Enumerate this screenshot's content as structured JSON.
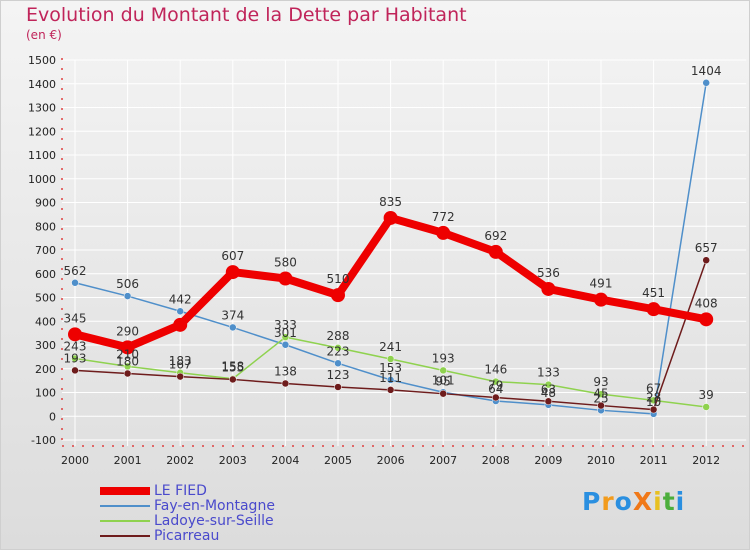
{
  "header": {
    "title": "Evolution du Montant de la Dette par Habitant",
    "subtitle": "(en €)"
  },
  "logo_text": "ProXiti",
  "logo_colors": [
    "#2a8fe0",
    "#f29b1c",
    "#2a8fe0",
    "#f07818",
    "#e8c020",
    "#4cae3c",
    "#2a8fe0"
  ],
  "chart_data": {
    "type": "line",
    "title": "Evolution du Montant de la Dette par Habitant",
    "subtitle": "(en €)",
    "xlabel": "",
    "ylabel": "",
    "categories": [
      "2000",
      "2001",
      "2002",
      "2003",
      "2004",
      "2005",
      "2006",
      "2007",
      "2008",
      "2009",
      "2010",
      "2011",
      "2012"
    ],
    "yticks": [
      "-100",
      "0",
      "100",
      "200",
      "300",
      "400",
      "500",
      "600",
      "700",
      "800",
      "900",
      "1000",
      "1100",
      "1200",
      "1300",
      "1400",
      "1500"
    ],
    "ylim": [
      -100,
      1500
    ],
    "grid": true,
    "legend_position": "bottom-left",
    "series": [
      {
        "name": "LE FIED",
        "color": "#ee0000",
        "bold": true,
        "values": [
          345,
          290,
          385,
          607,
          580,
          510,
          835,
          772,
          692,
          536,
          491,
          451,
          408
        ],
        "labels": [
          "345",
          "290",
          "",
          "607",
          "580",
          "510",
          "835",
          "772",
          "692",
          "536",
          "491",
          "451",
          "408"
        ]
      },
      {
        "name": "Fay-en-Montagne",
        "color": "#4f8fca",
        "bold": false,
        "values": [
          562,
          506,
          442,
          374,
          301,
          223,
          153,
          101,
          64,
          48,
          25,
          10,
          1404
        ],
        "labels": [
          "562",
          "506",
          "442",
          "374",
          "301",
          "223",
          "153",
          "101",
          "64",
          "48",
          "25",
          "10",
          "1404"
        ]
      },
      {
        "name": "Ladoye-sur-Seille",
        "color": "#8fd24f",
        "bold": false,
        "values": [
          243,
          210,
          183,
          158,
          333,
          288,
          241,
          193,
          146,
          133,
          93,
          67,
          39
        ],
        "labels": [
          "243",
          "210",
          "183",
          "158",
          "333",
          "288",
          "241",
          "193",
          "146",
          "133",
          "93",
          "67",
          "39"
        ]
      },
      {
        "name": "Picarreau",
        "color": "#6e1c1c",
        "bold": false,
        "values": [
          193,
          180,
          167,
          155,
          138,
          123,
          111,
          95,
          79,
          63,
          45,
          28,
          657
        ],
        "labels": [
          "193",
          "180",
          "167",
          "155",
          "138",
          "123",
          "111",
          "95",
          "79",
          "63",
          "45",
          "28",
          "657"
        ]
      }
    ]
  }
}
